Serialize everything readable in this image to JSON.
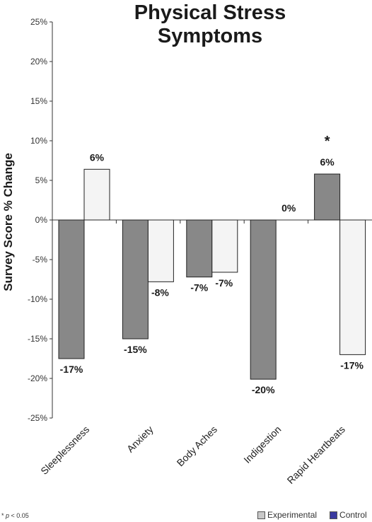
{
  "chart_data": {
    "type": "bar",
    "title": [
      "Physical Stress",
      "Symptoms"
    ],
    "ylabel": "Survey Score % Change",
    "xlabel": "",
    "ylim": [
      -25,
      25
    ],
    "yticks": [
      25,
      20,
      15,
      10,
      5,
      0,
      -5,
      -10,
      -15,
      -20,
      -25
    ],
    "ytick_labels": [
      "25%",
      "20%",
      "15%",
      "10%",
      "5%",
      "0%",
      "-5%",
      "-10%",
      "-15%",
      "-20%",
      "-25%"
    ],
    "categories": [
      "Sleeplessness",
      "Anxiety",
      "Body Aches",
      "Indigestion",
      "Rapid Heartbeats"
    ],
    "series": [
      {
        "name": "Experimental",
        "color": "#888888",
        "values": [
          -17.5,
          -15,
          -7.2,
          -20.1,
          5.8
        ],
        "labels": [
          "-17%",
          "-15%",
          "-7%",
          "-20%",
          "6%"
        ]
      },
      {
        "name": "Control",
        "color": "#f4f4f4",
        "values": [
          6.4,
          -7.8,
          -6.6,
          0,
          -17
        ],
        "labels": [
          "6%",
          "-8%",
          "-7%",
          "0%",
          "-17%"
        ]
      }
    ],
    "significance": [
      {
        "category": "Rapid Heartbeats",
        "series": "Experimental",
        "mark": "*"
      }
    ],
    "grid": false,
    "legend_position": "bottom-right"
  },
  "footnote": {
    "mark": "* ",
    "p": "p",
    "text": " < 0.05"
  },
  "legend": {
    "items": [
      {
        "label": "Experimental",
        "color": "#c8c8c8"
      },
      {
        "label": "Control",
        "color": "#3a3aa0"
      }
    ]
  }
}
